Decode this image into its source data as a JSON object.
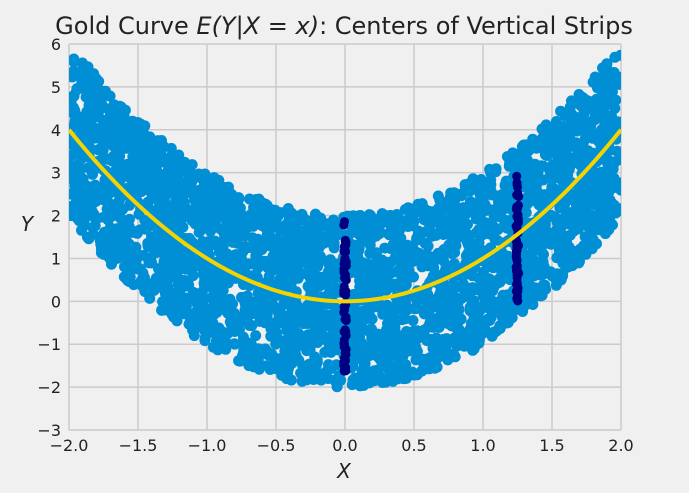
{
  "chart_data": {
    "type": "scatter",
    "title_plain": "Gold Curve ",
    "title_math": "E(Y|X = x)",
    "title_rest": ": Centers of Vertical Strips",
    "xlabel": "X",
    "ylabel": "Y",
    "xlim": [
      -2.0,
      2.0
    ],
    "ylim": [
      -3,
      6
    ],
    "xticks": [
      "−2.0",
      "−1.5",
      "−1.0",
      "−0.5",
      "0.0",
      "0.5",
      "1.0",
      "1.5",
      "2.0"
    ],
    "yticks": [
      "−3",
      "−2",
      "−1",
      "0",
      "1",
      "2",
      "3",
      "4",
      "5",
      "6"
    ],
    "grid": true,
    "series": [
      {
        "description": "points (X, Y) with X uniform on [-2, 2] and Y = X^2 + e, e uniform on [-2, 2]",
        "color": "#008fd5",
        "x_range": [
          -2.0,
          2.0
        ],
        "y_center": "x^2",
        "y_spread": 2.0
      },
      {
        "description": "vertical strip at X = 0",
        "color": "#000080",
        "x": 0.0,
        "y_range": [
          -1.9,
          1.9
        ]
      },
      {
        "description": "vertical strip at X = 1.25",
        "color": "#000080",
        "x": 1.25,
        "y_range": [
          -0.05,
          2.95
        ]
      },
      {
        "description": "gold curve E(Y|X=x) = x^2",
        "color": "#f5d300",
        "function": "x^2",
        "x_range": [
          -2.0,
          2.0
        ]
      }
    ]
  }
}
